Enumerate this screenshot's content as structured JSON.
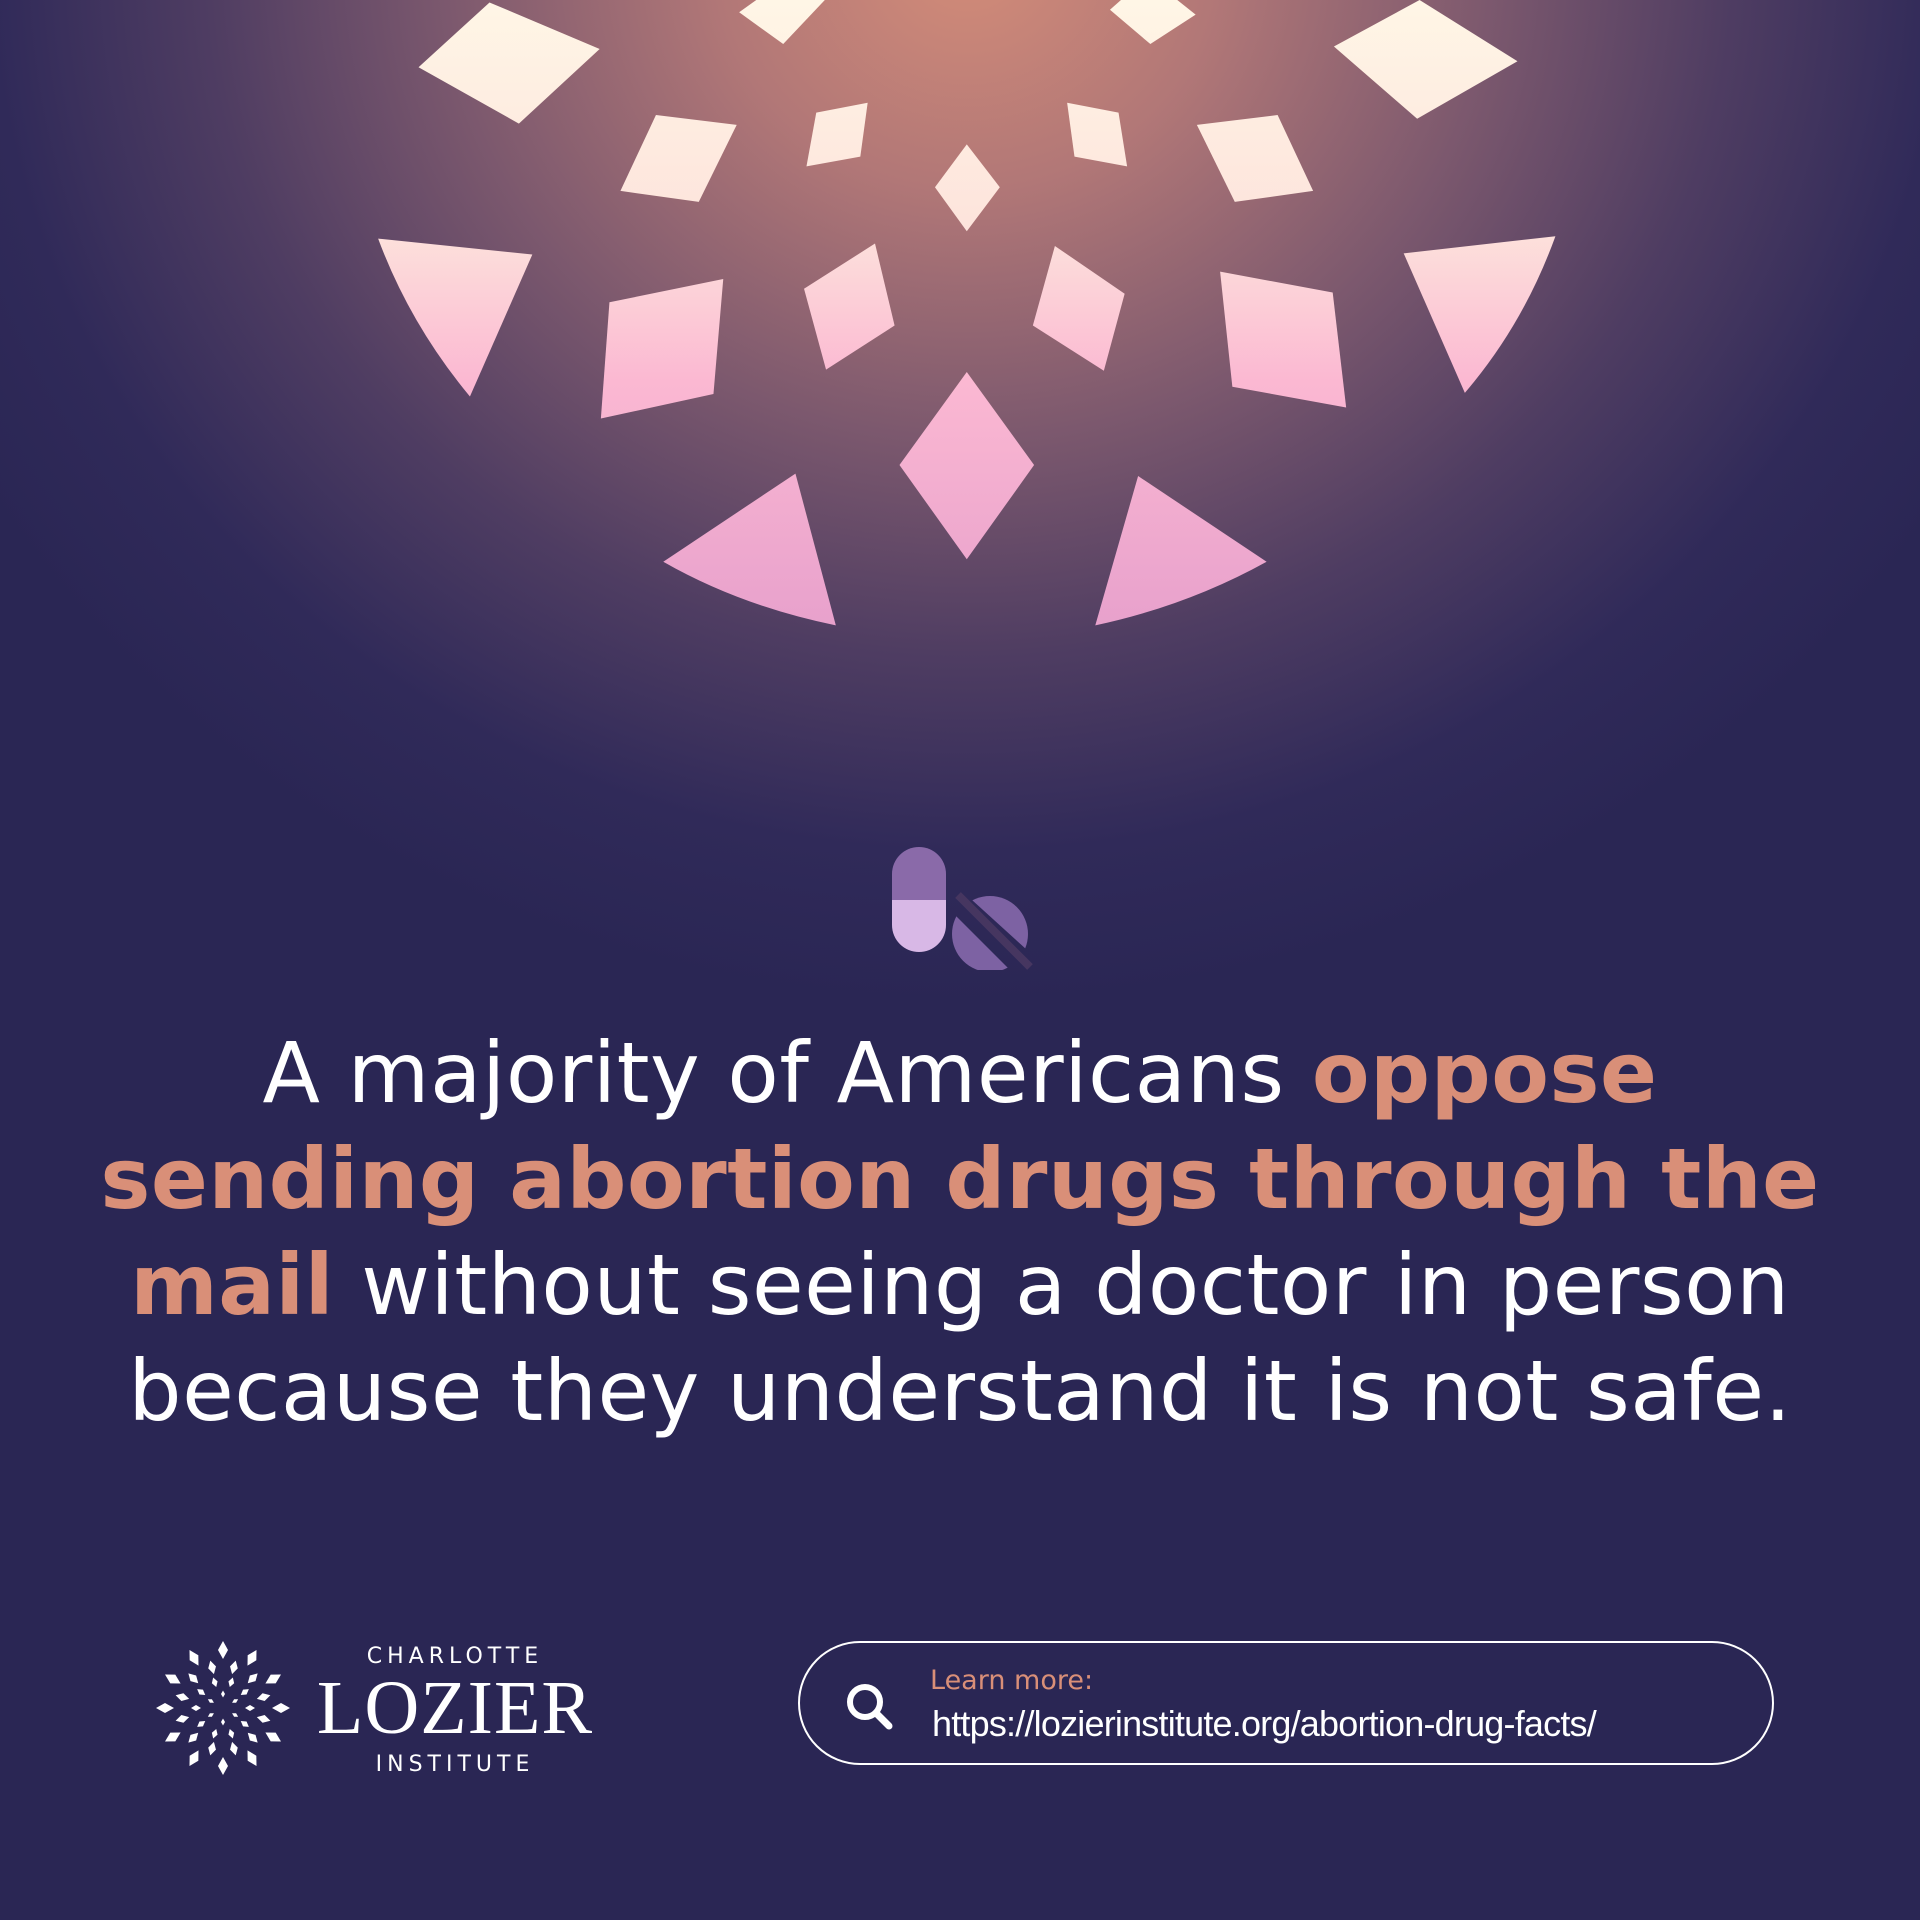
{
  "headline": {
    "part1": "A majority of Americans ",
    "highlight": "oppose sending abortion drugs through the mail",
    "part2": " without seeing a doctor in person because they understand it is not safe."
  },
  "icons": {
    "top": "pills-icon",
    "search": "search-icon",
    "logo": "starburst-logo-icon"
  },
  "logo": {
    "line1": "CHARLOTTE",
    "line2": "LOZIER",
    "line3": "INSTITUTE"
  },
  "learn_more": {
    "label": "Learn more:",
    "url": "https://lozierinstitute.org/abortion-drug-facts/"
  },
  "colors": {
    "background": "#2a2654",
    "accent": "#d98f78",
    "glow": "#d38c78"
  }
}
